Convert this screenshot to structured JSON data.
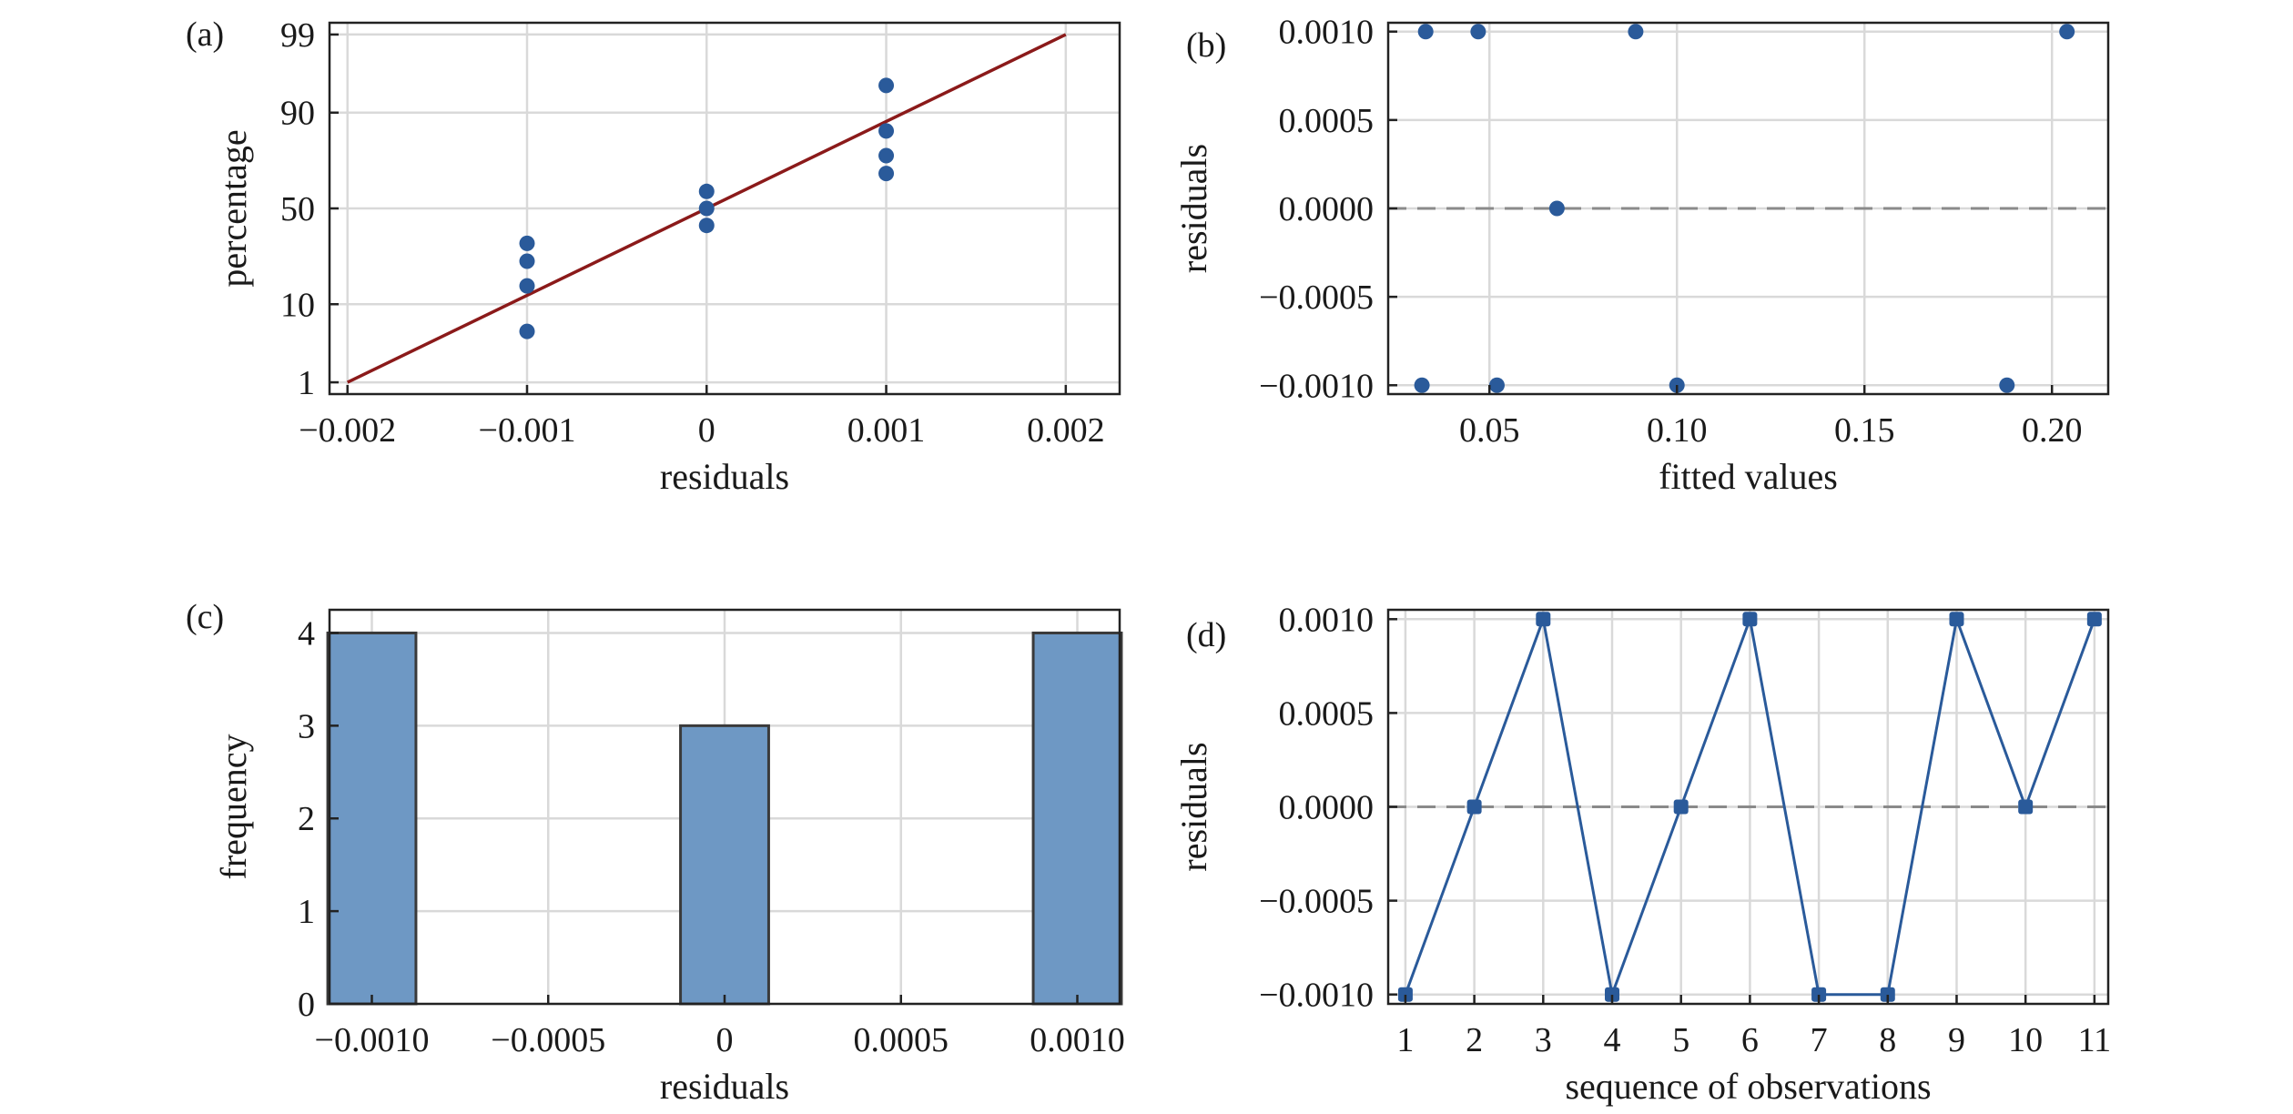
{
  "chart_data": [
    {
      "panel": "(a)",
      "type": "scatter",
      "xlabel": "residuals",
      "ylabel": "percentage",
      "xlim": [
        -0.0021,
        0.0023
      ],
      "xticks": [
        -0.002,
        -0.001,
        0,
        0.001,
        0.002
      ],
      "xtick_labels": [
        "−0.002",
        "−0.001",
        "0",
        "0.001",
        "0.002"
      ],
      "y_scale": "normal-probability",
      "ylim": [
        1,
        99
      ],
      "yticks": [
        1,
        10,
        50,
        90,
        99
      ],
      "ytick_labels": [
        "1",
        "10",
        "50",
        "90",
        "99"
      ],
      "grid": true,
      "points": [
        {
          "x": -0.001,
          "y": 5
        },
        {
          "x": -0.001,
          "y": 15
        },
        {
          "x": -0.001,
          "y": 24
        },
        {
          "x": -0.001,
          "y": 32
        },
        {
          "x": 0,
          "y": 41
        },
        {
          "x": 0,
          "y": 50
        },
        {
          "x": 0,
          "y": 59
        },
        {
          "x": 0.001,
          "y": 68
        },
        {
          "x": 0.001,
          "y": 76
        },
        {
          "x": 0.001,
          "y": 85
        },
        {
          "x": 0.001,
          "y": 95
        }
      ],
      "reference_line": {
        "x": [
          -0.002,
          0.002
        ],
        "y": [
          1,
          99
        ]
      },
      "point_color": "#2a5a9a",
      "line_color": "#8b1a1a"
    },
    {
      "panel": "(b)",
      "type": "scatter",
      "xlabel": "fitted values",
      "ylabel": "residuals",
      "xlim": [
        0.023,
        0.215
      ],
      "xticks": [
        0.05,
        0.1,
        0.15,
        0.2
      ],
      "xtick_labels": [
        "0.05",
        "0.10",
        "0.15",
        "0.20"
      ],
      "ylim": [
        -0.00105,
        0.00105
      ],
      "yticks": [
        0.001,
        0.0005,
        0,
        -0.0005,
        -0.001
      ],
      "ytick_labels": [
        "0.0010",
        "0.0005",
        "0.0000",
        "−0.0005",
        "−0.0010"
      ],
      "grid": true,
      "zero_line": true,
      "points": [
        {
          "x": 0.033,
          "y": 0.001
        },
        {
          "x": 0.047,
          "y": 0.001
        },
        {
          "x": 0.089,
          "y": 0.001
        },
        {
          "x": 0.204,
          "y": 0.001
        },
        {
          "x": 0.068,
          "y": 0
        },
        {
          "x": 0.032,
          "y": -0.001
        },
        {
          "x": 0.052,
          "y": -0.001
        },
        {
          "x": 0.1,
          "y": -0.001
        },
        {
          "x": 0.188,
          "y": -0.001
        }
      ],
      "point_color": "#2a5a9a"
    },
    {
      "panel": "(c)",
      "type": "bar",
      "xlabel": "residuals",
      "ylabel": "frequency",
      "xlim": [
        -0.00112,
        0.00112
      ],
      "xticks": [
        -0.001,
        -0.0005,
        0,
        0.0005,
        0.001
      ],
      "xtick_labels": [
        "−0.0010",
        "−0.0005",
        "0",
        "0.0005",
        "0.0010"
      ],
      "ylim": [
        0,
        4.25
      ],
      "yticks": [
        0,
        1,
        2,
        3,
        4
      ],
      "ytick_labels": [
        "0",
        "1",
        "2",
        "3",
        "4"
      ],
      "grid": true,
      "bar_width": 0.00025,
      "bars": [
        {
          "x": -0.001,
          "value": 4
        },
        {
          "x": 0,
          "value": 3
        },
        {
          "x": 0.001,
          "value": 4
        }
      ],
      "bar_color": "#6e98c4",
      "bar_edge": "#3a3a3a"
    },
    {
      "panel": "(d)",
      "type": "line",
      "xlabel": "sequence of observations",
      "ylabel": "residuals",
      "xlim": [
        0.75,
        11.2
      ],
      "xticks": [
        1,
        2,
        3,
        4,
        5,
        6,
        7,
        8,
        9,
        10,
        11
      ],
      "xtick_labels": [
        "1",
        "2",
        "3",
        "4",
        "5",
        "6",
        "7",
        "8",
        "9",
        "10",
        "11"
      ],
      "ylim": [
        -0.00105,
        0.00105
      ],
      "yticks": [
        0.001,
        0.0005,
        0,
        -0.0005,
        -0.001
      ],
      "ytick_labels": [
        "0.0010",
        "0.0005",
        "0.0000",
        "−0.0005",
        "−0.0010"
      ],
      "grid": true,
      "zero_line": true,
      "x": [
        1,
        2,
        3,
        4,
        5,
        6,
        7,
        8,
        9,
        10,
        11
      ],
      "y": [
        -0.001,
        0,
        0.001,
        -0.001,
        0,
        0.001,
        -0.001,
        -0.001,
        0.001,
        0,
        0.001
      ],
      "line_color": "#2a5a9a"
    }
  ]
}
